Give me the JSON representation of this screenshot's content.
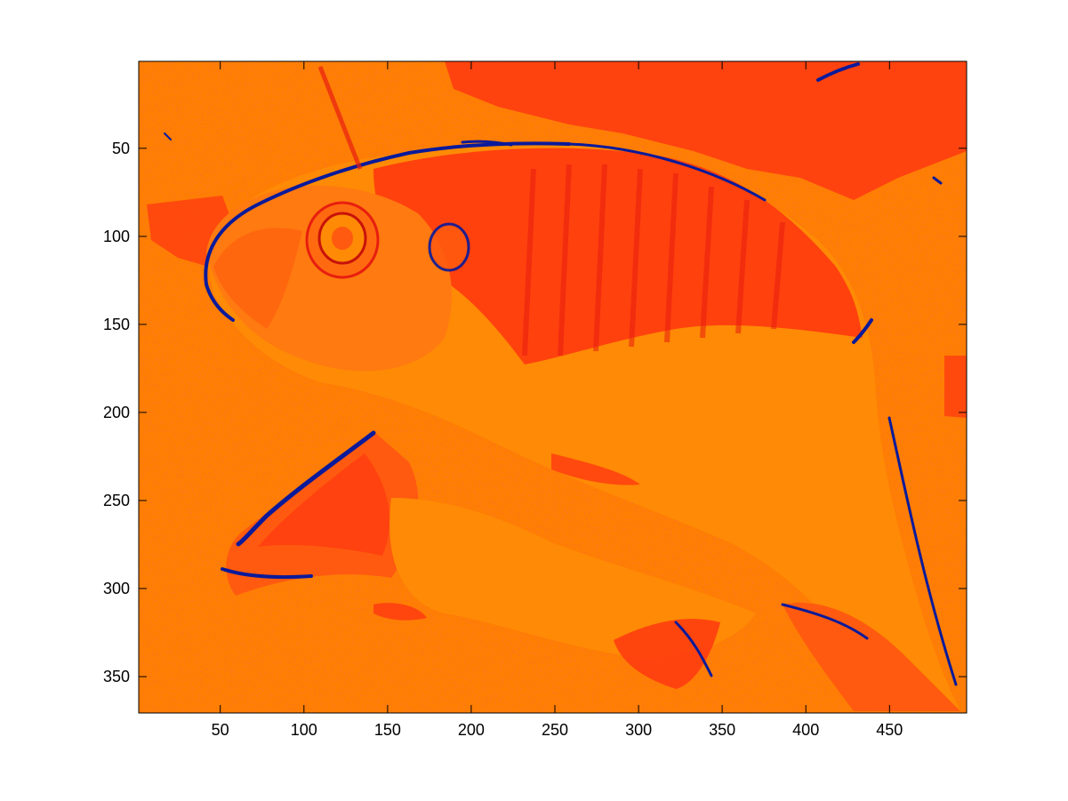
{
  "figure": {
    "background": "#ffffff",
    "axes": {
      "x_ticks": [
        "50",
        "100",
        "150",
        "200",
        "250",
        "300",
        "350",
        "400",
        "450"
      ],
      "y_ticks": [
        "50",
        "100",
        "150",
        "200",
        "250",
        "300",
        "350"
      ],
      "xlim": [
        0.5,
        495.5
      ],
      "ylim": [
        0.5,
        370.5
      ],
      "y_direction": "reverse"
    },
    "image": {
      "subject": "goldfish",
      "colormap": [
        "#ff7f00",
        "#ff5a0f",
        "#ff3810",
        "#e81e0f",
        "#0a1a9a"
      ]
    }
  }
}
